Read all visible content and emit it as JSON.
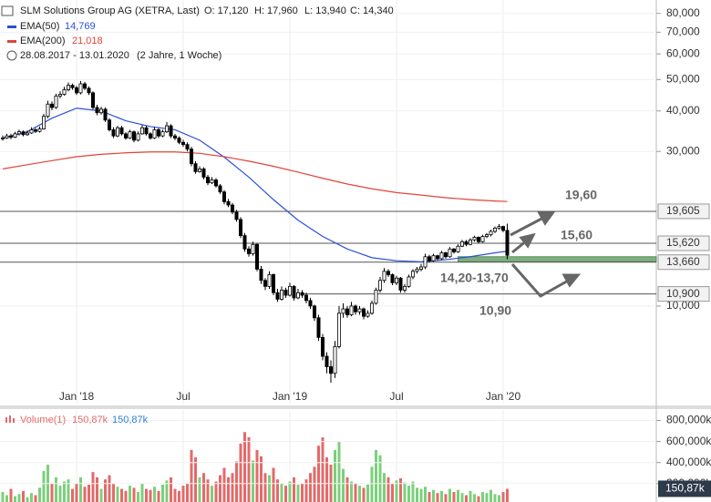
{
  "header": {
    "title": "SLM Solutions Group AG (XETRA, Last)",
    "open": "O: 17,120",
    "high": "H: 17,960",
    "low": "L: 13,940",
    "close": "C: 14,340",
    "ema50_value": "14,769",
    "ema200_value": "21,018",
    "range": "28.08.2017 - 13.01.2020",
    "span": "(2 Jahre, 1 Woche)"
  },
  "chart_data": [
    {
      "type": "candlestick",
      "log_scale": true,
      "grid": true,
      "up_color": "#ffffff",
      "down_color": "#000000",
      "ylim": [
        5,
        88
      ],
      "yticks": [
        {
          "value": 80,
          "label": "80,000"
        },
        {
          "value": 70,
          "label": "70,000"
        },
        {
          "value": 60,
          "label": "60,000"
        },
        {
          "value": 50,
          "label": "50,000"
        },
        {
          "value": 40,
          "label": "40,000"
        },
        {
          "value": 30,
          "label": "30,000"
        },
        {
          "value": 10,
          "label": "10,000"
        }
      ],
      "xlim": [
        0,
        123
      ],
      "xticks": [
        {
          "value": 18,
          "label": "Jan '18"
        },
        {
          "value": 44,
          "label": "Jul"
        },
        {
          "value": 70,
          "label": "Jan '19"
        },
        {
          "value": 96,
          "label": "Jul"
        },
        {
          "value": 122,
          "label": "Jan '20"
        }
      ],
      "ohlc": [
        [
          32.8,
          33.6,
          32.4,
          33.0
        ],
        [
          33.0,
          34.0,
          32.8,
          33.5
        ],
        [
          33.5,
          34.0,
          32.7,
          33.2
        ],
        [
          33.2,
          34.5,
          33.0,
          34.0
        ],
        [
          34.0,
          35.0,
          33.6,
          34.5
        ],
        [
          34.5,
          34.8,
          33.4,
          33.8
        ],
        [
          33.8,
          34.8,
          33.5,
          34.2
        ],
        [
          34.2,
          35.6,
          34.0,
          35.0
        ],
        [
          35.0,
          35.4,
          34.2,
          34.6
        ],
        [
          34.6,
          35.8,
          34.3,
          35.2
        ],
        [
          35.2,
          39.2,
          35.0,
          38.5
        ],
        [
          38.5,
          43.0,
          38.0,
          42.0
        ],
        [
          42.0,
          42.8,
          40.2,
          41.0
        ],
        [
          41.0,
          45.2,
          40.6,
          44.5
        ],
        [
          44.5,
          46.0,
          43.8,
          45.0
        ],
        [
          45.0,
          47.5,
          44.6,
          46.5
        ],
        [
          46.5,
          49.0,
          46.0,
          48.0
        ],
        [
          48.0,
          48.6,
          46.5,
          47.2
        ],
        [
          47.2,
          47.8,
          44.8,
          45.5
        ],
        [
          45.5,
          49.5,
          45.0,
          48.5
        ],
        [
          48.5,
          49.2,
          46.4,
          47.0
        ],
        [
          47.0,
          47.6,
          44.8,
          45.5
        ],
        [
          45.5,
          46.0,
          40.4,
          41.0
        ],
        [
          41.0,
          41.8,
          38.8,
          39.5
        ],
        [
          39.5,
          41.2,
          39.0,
          40.5
        ],
        [
          40.5,
          41.0,
          37.0,
          37.5
        ],
        [
          37.5,
          38.0,
          34.6,
          35.0
        ],
        [
          35.0,
          35.6,
          33.0,
          33.5
        ],
        [
          33.5,
          36.0,
          33.2,
          35.5
        ],
        [
          35.5,
          36.0,
          33.6,
          34.0
        ],
        [
          34.0,
          34.4,
          32.6,
          33.0
        ],
        [
          33.0,
          35.0,
          32.8,
          34.5
        ],
        [
          34.5,
          34.8,
          32.0,
          32.5
        ],
        [
          32.5,
          34.6,
          32.2,
          34.0
        ],
        [
          34.0,
          36.2,
          33.8,
          35.5
        ],
        [
          35.5,
          36.0,
          33.6,
          34.0
        ],
        [
          34.0,
          34.4,
          32.6,
          33.0
        ],
        [
          33.0,
          35.6,
          32.8,
          35.0
        ],
        [
          35.0,
          35.4,
          33.0,
          33.5
        ],
        [
          33.5,
          35.0,
          33.2,
          34.5
        ],
        [
          34.5,
          37.0,
          34.2,
          36.0
        ],
        [
          36.0,
          36.4,
          33.0,
          33.5
        ],
        [
          33.5,
          34.0,
          32.5,
          33.0
        ],
        [
          33.0,
          33.4,
          31.6,
          32.0
        ],
        [
          32.0,
          32.6,
          31.0,
          31.5
        ],
        [
          31.5,
          32.0,
          30.0,
          30.5
        ],
        [
          30.5,
          31.0,
          27.0,
          27.5
        ],
        [
          27.5,
          28.0,
          25.6,
          26.0
        ],
        [
          26.0,
          27.0,
          25.8,
          26.5
        ],
        [
          26.5,
          26.8,
          24.6,
          25.0
        ],
        [
          25.0,
          25.4,
          23.6,
          24.0
        ],
        [
          24.0,
          25.0,
          23.8,
          24.5
        ],
        [
          24.5,
          24.8,
          23.2,
          23.5
        ],
        [
          23.5,
          23.8,
          22.2,
          22.5
        ],
        [
          22.5,
          22.8,
          20.6,
          21.0
        ],
        [
          21.0,
          21.4,
          20.2,
          20.5
        ],
        [
          20.5,
          20.8,
          19.2,
          19.5
        ],
        [
          19.5,
          19.8,
          18.2,
          18.5
        ],
        [
          18.5,
          18.8,
          16.2,
          16.5
        ],
        [
          16.5,
          16.8,
          14.7,
          15.0
        ],
        [
          15.0,
          15.3,
          14.2,
          14.5
        ],
        [
          14.5,
          15.8,
          14.3,
          15.5
        ],
        [
          15.5,
          15.6,
          12.8,
          13.0
        ],
        [
          13.0,
          13.3,
          11.7,
          12.0
        ],
        [
          12.0,
          12.2,
          11.2,
          11.5
        ],
        [
          11.5,
          12.8,
          11.3,
          12.5
        ],
        [
          12.5,
          12.6,
          10.8,
          11.0
        ],
        [
          11.0,
          11.3,
          10.3,
          10.5
        ],
        [
          10.5,
          11.5,
          10.4,
          11.2
        ],
        [
          11.2,
          11.4,
          10.6,
          10.8
        ],
        [
          10.8,
          11.8,
          10.7,
          11.5
        ],
        [
          11.5,
          11.6,
          10.4,
          10.6
        ],
        [
          10.6,
          11.3,
          10.5,
          11.0
        ],
        [
          11.0,
          11.2,
          10.6,
          10.8
        ],
        [
          10.8,
          11.0,
          10.2,
          10.4
        ],
        [
          10.4,
          10.6,
          9.8,
          10.0
        ],
        [
          10.0,
          10.1,
          9.0,
          9.2
        ],
        [
          9.2,
          9.4,
          7.8,
          8.0
        ],
        [
          8.0,
          8.2,
          6.8,
          7.0
        ],
        [
          7.0,
          7.2,
          6.2,
          6.5
        ],
        [
          6.5,
          6.8,
          5.8,
          6.2
        ],
        [
          6.2,
          7.8,
          6.0,
          7.5
        ],
        [
          7.5,
          10.0,
          7.4,
          9.5
        ],
        [
          9.5,
          10.2,
          9.2,
          9.8
        ],
        [
          9.8,
          10.0,
          9.2,
          9.4
        ],
        [
          9.4,
          10.3,
          9.3,
          10.0
        ],
        [
          10.0,
          10.1,
          9.4,
          9.6
        ],
        [
          9.6,
          10.0,
          9.4,
          9.8
        ],
        [
          9.8,
          9.9,
          9.1,
          9.3
        ],
        [
          9.3,
          9.7,
          9.2,
          9.5
        ],
        [
          9.5,
          10.4,
          9.4,
          10.2
        ],
        [
          10.2,
          11.4,
          10.1,
          11.2
        ],
        [
          11.2,
          12.3,
          11.0,
          12.0
        ],
        [
          12.0,
          13.1,
          11.8,
          12.8
        ],
        [
          12.8,
          13.0,
          12.3,
          12.5
        ],
        [
          12.5,
          12.6,
          11.6,
          11.8
        ],
        [
          11.8,
          12.4,
          11.6,
          12.2
        ],
        [
          12.2,
          12.3,
          11.0,
          11.2
        ],
        [
          11.2,
          11.7,
          11.0,
          11.5
        ],
        [
          11.5,
          12.5,
          11.4,
          12.3
        ],
        [
          12.3,
          13.0,
          12.1,
          12.8
        ],
        [
          12.8,
          13.2,
          12.6,
          13.0
        ],
        [
          13.0,
          13.5,
          12.8,
          13.2
        ],
        [
          13.2,
          14.5,
          13.0,
          14.2
        ],
        [
          14.2,
          14.4,
          13.6,
          13.8
        ],
        [
          13.8,
          14.5,
          13.7,
          14.3
        ],
        [
          14.3,
          14.4,
          13.8,
          14.0
        ],
        [
          14.0,
          14.8,
          13.9,
          14.6
        ],
        [
          14.6,
          14.7,
          14.0,
          14.2
        ],
        [
          14.2,
          15.2,
          14.1,
          15.0
        ],
        [
          15.0,
          15.1,
          14.5,
          14.7
        ],
        [
          14.7,
          15.5,
          14.6,
          15.3
        ],
        [
          15.3,
          16.0,
          15.2,
          15.8
        ],
        [
          15.8,
          16.0,
          15.3,
          15.5
        ],
        [
          15.5,
          16.2,
          15.4,
          16.0
        ],
        [
          16.0,
          16.5,
          15.8,
          16.3
        ],
        [
          16.3,
          16.4,
          15.6,
          15.8
        ],
        [
          15.8,
          16.6,
          15.7,
          16.4
        ],
        [
          16.4,
          16.8,
          16.2,
          16.6
        ],
        [
          16.6,
          17.2,
          16.4,
          17.0
        ],
        [
          17.0,
          17.6,
          16.8,
          17.4
        ],
        [
          17.4,
          17.9,
          17.2,
          17.6
        ],
        [
          17.6,
          17.7,
          16.9,
          17.12
        ],
        [
          17.12,
          17.96,
          13.94,
          14.34
        ]
      ],
      "series": [
        {
          "name": "EMA(50)",
          "color": "#2b4fd8",
          "x": [
            0,
            6,
            12,
            18,
            24,
            30,
            36,
            42,
            48,
            54,
            60,
            66,
            72,
            78,
            84,
            90,
            96,
            102,
            108,
            114,
            120,
            123
          ],
          "values": [
            33.0,
            34.5,
            38.0,
            40.8,
            40.0,
            37.3,
            35.8,
            35.0,
            32.5,
            28.8,
            25.0,
            21.3,
            18.4,
            16.4,
            15.0,
            14.1,
            13.8,
            13.7,
            13.9,
            14.2,
            14.6,
            14.769
          ]
        },
        {
          "name": "EMA(200)",
          "color": "#e0443a",
          "x": [
            0,
            6,
            12,
            18,
            24,
            30,
            36,
            42,
            48,
            54,
            60,
            66,
            72,
            78,
            84,
            90,
            96,
            102,
            108,
            114,
            120,
            123
          ],
          "values": [
            26.5,
            27.3,
            28.1,
            28.9,
            29.4,
            29.7,
            29.9,
            29.9,
            29.6,
            28.9,
            28.0,
            27.0,
            25.9,
            24.8,
            23.8,
            23.0,
            22.4,
            22.0,
            21.6,
            21.3,
            21.1,
            21.018
          ]
        }
      ],
      "levels": [
        {
          "value": 19.605,
          "label": "19,605"
        },
        {
          "value": 15.62,
          "label": "15,620"
        },
        {
          "value": 13.66,
          "label": "13,660"
        },
        {
          "value": 10.9,
          "label": "10,900"
        }
      ],
      "zone": [
        13.7,
        14.2
      ],
      "annotations": [
        "19,60",
        "15,60",
        "14,20-13,70",
        "10,90"
      ]
    },
    {
      "type": "bar",
      "title": "Volume(1)",
      "value_label": "150,87k",
      "up_color": "#7ccf7c",
      "down_color": "#e46a6a",
      "ylim": [
        25,
        900
      ],
      "yticks": [
        {
          "value": 800,
          "label": "800,000k"
        },
        {
          "value": 600,
          "label": "600,000k"
        },
        {
          "value": 400,
          "label": "400,000k"
        },
        {
          "value": 200,
          "label": "200,000k"
        }
      ],
      "values": [
        120,
        90,
        150,
        80,
        100,
        130,
        70,
        110,
        90,
        160,
        320,
        380,
        200,
        260,
        180,
        220,
        240,
        150,
        200,
        260,
        170,
        190,
        310,
        260,
        150,
        240,
        280,
        200,
        170,
        150,
        130,
        180,
        160,
        120,
        200,
        150,
        140,
        170,
        130,
        190,
        230,
        260,
        150,
        130,
        180,
        200,
        520,
        450,
        260,
        300,
        240,
        180,
        220,
        280,
        350,
        260,
        300,
        410,
        580,
        690,
        640,
        420,
        520,
        460,
        300,
        280,
        350,
        240,
        200,
        180,
        220,
        260,
        190,
        200,
        240,
        300,
        360,
        560,
        640,
        450,
        380,
        520,
        600,
        340,
        260,
        220,
        200,
        180,
        160,
        190,
        360,
        520,
        470,
        300,
        260,
        200,
        230,
        250,
        210,
        180,
        220,
        160,
        150,
        170,
        120,
        140,
        110,
        130,
        100,
        150,
        120,
        140,
        110,
        90,
        130,
        100,
        80,
        120,
        110,
        140,
        100,
        90,
        120,
        150.87
      ]
    }
  ]
}
